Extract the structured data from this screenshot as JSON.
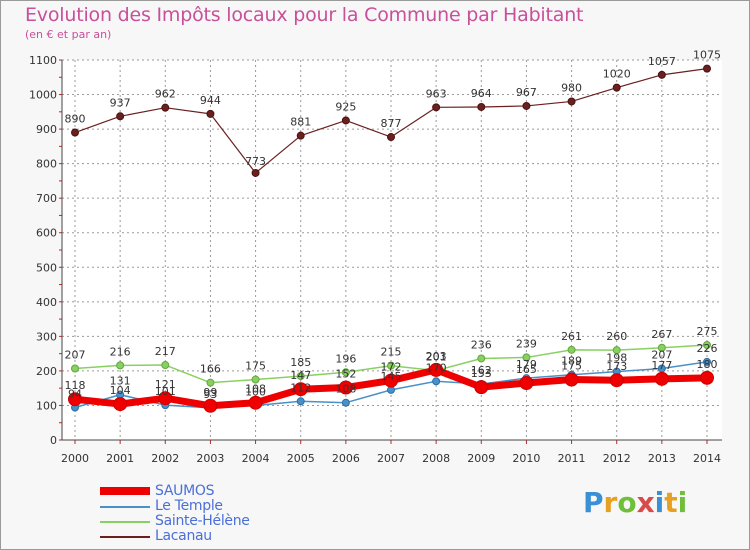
{
  "chart_data": {
    "type": "line",
    "title": "Evolution des Impôts locaux pour la Commune par Habitant",
    "subtitle": "(en € et par an)",
    "xlabel": "",
    "ylabel": "",
    "ylim": [
      0,
      1100
    ],
    "yticks": [
      0,
      100,
      200,
      300,
      400,
      500,
      600,
      700,
      800,
      900,
      1000,
      1100
    ],
    "categories": [
      "2000",
      "2001",
      "2002",
      "2003",
      "2004",
      "2005",
      "2006",
      "2007",
      "2008",
      "2009",
      "2010",
      "2011",
      "2012",
      "2013",
      "2014"
    ],
    "series": [
      {
        "name": "SAUMOS",
        "color": "#ee0000",
        "values": [
          118,
          104,
          121,
          99,
          108,
          147,
          152,
          172,
          203,
          153,
          165,
          175,
          173,
          177,
          180
        ]
      },
      {
        "name": "Le Temple",
        "color": "#4a90c8",
        "values": [
          94,
          131,
          101,
          93,
          100,
          112,
          108,
          145,
          170,
          162,
          179,
          189,
          198,
          207,
          226
        ]
      },
      {
        "name": "Sainte-Hélène",
        "color": "#88d060",
        "values": [
          207,
          216,
          217,
          166,
          175,
          185,
          196,
          215,
          201,
          236,
          239,
          261,
          260,
          267,
          275
        ]
      },
      {
        "name": "Lacanau",
        "color": "#6b2020",
        "values": [
          890,
          937,
          962,
          944,
          773,
          881,
          925,
          877,
          963,
          964,
          967,
          980,
          1020,
          1057,
          1075
        ]
      }
    ]
  },
  "brand": {
    "p": "P",
    "r": "r",
    "o": "o",
    "x": "x",
    "i": "i",
    "t": "t",
    "i2": "i"
  }
}
